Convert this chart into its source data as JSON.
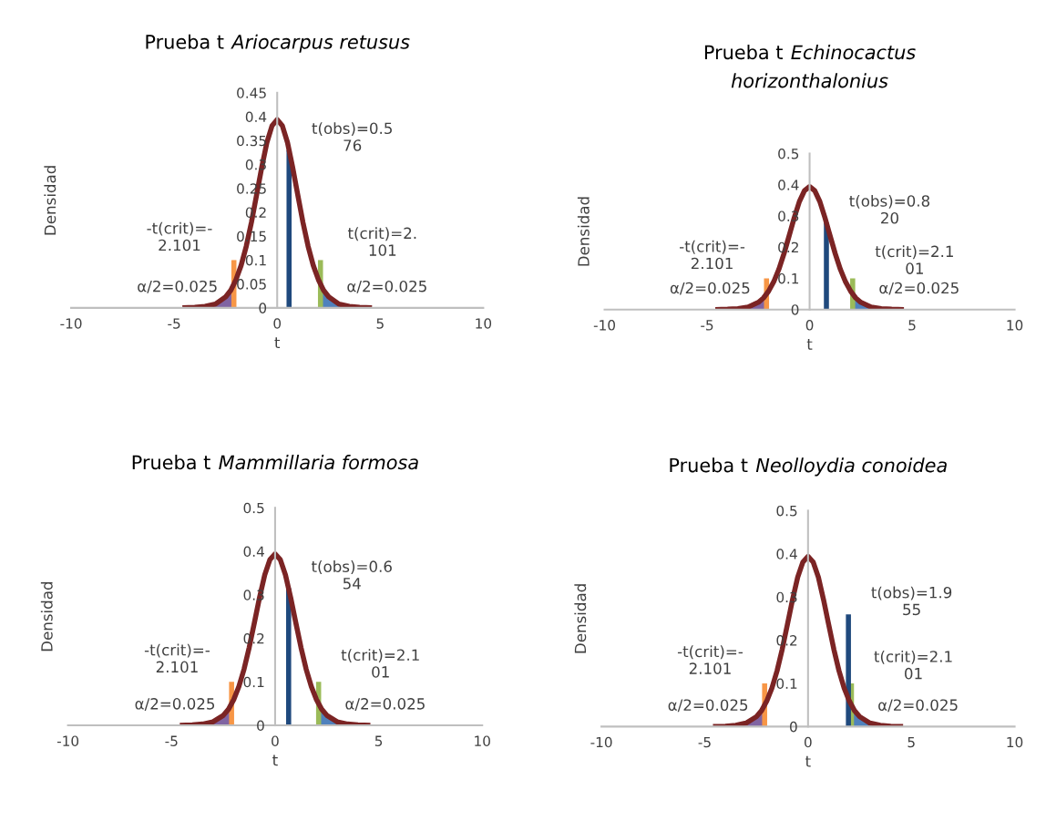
{
  "chart_data": [
    {
      "type": "line",
      "title": "Prueba t Ariocarpus retusus",
      "xlabel": "t",
      "ylabel": "Densidad",
      "xlim": [
        -10,
        10
      ],
      "xticks": [
        -10,
        -5,
        0,
        5,
        10
      ],
      "ylim": [
        0,
        0.45
      ],
      "yticks": [
        0,
        0.05,
        0.1,
        0.15,
        0.2,
        0.25,
        0.3,
        0.35,
        0.4,
        0.45
      ],
      "series": [
        {
          "type": "area",
          "color": "#8064a2",
          "x": [
            -4.6,
            -4,
            -3.5,
            -3,
            -2.5,
            -2.25,
            -2.101
          ],
          "values": [
            0.0,
            0.001,
            0.003,
            0.008,
            0.023,
            0.037,
            0.049
          ]
        },
        {
          "type": "area",
          "color": "#4f81bd",
          "x": [
            2.101,
            2.25,
            2.5,
            3,
            3.5,
            4,
            4.6
          ],
          "values": [
            0.049,
            0.037,
            0.023,
            0.008,
            0.003,
            0.001,
            0.0
          ]
        },
        {
          "type": "line",
          "color": "#f79646",
          "x": [
            -2.101,
            -2.101
          ],
          "values": [
            0,
            0.1
          ]
        },
        {
          "type": "line",
          "color": "#9bbb59",
          "x": [
            2.101,
            2.101
          ],
          "values": [
            0,
            0.1
          ]
        },
        {
          "type": "line",
          "color": "#1f497d",
          "x": [
            0.576,
            0.576
          ],
          "values": [
            0,
            0.33
          ]
        },
        {
          "type": "line",
          "color": "#7b2424",
          "x": [
            -4.6,
            -4,
            -3.5,
            -3,
            -2.5,
            -2.25,
            -2,
            -1.75,
            -1.5,
            -1.25,
            -1,
            -0.75,
            -0.5,
            -0.25,
            0,
            0.25,
            0.5,
            0.75,
            1,
            1.25,
            1.5,
            1.75,
            2,
            2.25,
            2.5,
            3,
            3.5,
            4,
            4.6
          ],
          "values": [
            0.0,
            0.001,
            0.003,
            0.008,
            0.023,
            0.037,
            0.059,
            0.089,
            0.129,
            0.179,
            0.236,
            0.294,
            0.346,
            0.381,
            0.394,
            0.381,
            0.346,
            0.294,
            0.236,
            0.179,
            0.129,
            0.089,
            0.059,
            0.037,
            0.023,
            0.008,
            0.003,
            0.001,
            0.0
          ]
        }
      ],
      "annotations": [
        {
          "text": "t(obs)=0.5\n76",
          "x": 0.576,
          "y": 0.33
        },
        {
          "text": "-t(crit)=-\n2.101",
          "x": -2.101,
          "y": 0.1
        },
        {
          "text": "t(crit)=2.\n101",
          "x": 2.101,
          "y": 0.1
        },
        {
          "text": "α/2=0.025",
          "x": -3,
          "y": 0
        },
        {
          "text": "α/2=0.025",
          "x": 3,
          "y": 0
        }
      ]
    },
    {
      "type": "line",
      "title": "Prueba t Echinocactus horizonthalonius",
      "xlabel": "t",
      "ylabel": "Densidad",
      "xlim": [
        -10,
        10
      ],
      "xticks": [
        -10,
        -5,
        0,
        5,
        10
      ],
      "ylim": [
        0,
        0.5
      ],
      "yticks": [
        0,
        0.1,
        0.2,
        0.3,
        0.4,
        0.5
      ],
      "series": [
        {
          "type": "area",
          "color": "#8064a2",
          "x": [
            -4.6,
            -4,
            -3.5,
            -3,
            -2.5,
            -2.25,
            -2.101
          ],
          "values": [
            0.0,
            0.001,
            0.003,
            0.008,
            0.023,
            0.037,
            0.049
          ]
        },
        {
          "type": "area",
          "color": "#4f81bd",
          "x": [
            2.101,
            2.25,
            2.5,
            3,
            3.5,
            4,
            4.6
          ],
          "values": [
            0.049,
            0.037,
            0.023,
            0.008,
            0.003,
            0.001,
            0.0
          ]
        },
        {
          "type": "line",
          "color": "#f79646",
          "x": [
            -2.101,
            -2.101
          ],
          "values": [
            0,
            0.1
          ]
        },
        {
          "type": "line",
          "color": "#9bbb59",
          "x": [
            2.101,
            2.101
          ],
          "values": [
            0,
            0.1
          ]
        },
        {
          "type": "line",
          "color": "#1f497d",
          "x": [
            0.82,
            0.82
          ],
          "values": [
            0,
            0.278
          ]
        },
        {
          "type": "line",
          "color": "#7b2424",
          "x": [
            -4.6,
            -4,
            -3.5,
            -3,
            -2.5,
            -2.25,
            -2,
            -1.75,
            -1.5,
            -1.25,
            -1,
            -0.75,
            -0.5,
            -0.25,
            0,
            0.25,
            0.5,
            0.75,
            1,
            1.25,
            1.5,
            1.75,
            2,
            2.25,
            2.5,
            3,
            3.5,
            4,
            4.6
          ],
          "values": [
            0.0,
            0.001,
            0.003,
            0.008,
            0.023,
            0.037,
            0.059,
            0.089,
            0.129,
            0.179,
            0.236,
            0.294,
            0.346,
            0.381,
            0.394,
            0.381,
            0.346,
            0.294,
            0.236,
            0.179,
            0.129,
            0.089,
            0.059,
            0.037,
            0.023,
            0.008,
            0.003,
            0.001,
            0.0
          ]
        }
      ],
      "annotations": [
        {
          "text": "t(obs)=0.8\n20",
          "x": 0.82,
          "y": 0.278
        },
        {
          "text": "-t(crit)=-\n2.101",
          "x": -2.101,
          "y": 0.1
        },
        {
          "text": "t(crit)=2.1\n01",
          "x": 2.101,
          "y": 0.1
        },
        {
          "text": "α/2=0.025",
          "x": -3,
          "y": 0
        },
        {
          "text": "α/2=0.025",
          "x": 3,
          "y": 0
        }
      ]
    },
    {
      "type": "line",
      "title": "Prueba t Mammillaria formosa",
      "xlabel": "t",
      "ylabel": "Densidad",
      "xlim": [
        -10,
        10
      ],
      "xticks": [
        -10,
        -5,
        0,
        5,
        10
      ],
      "ylim": [
        0,
        0.5
      ],
      "yticks": [
        0,
        0.1,
        0.2,
        0.3,
        0.4,
        0.5
      ],
      "series": [
        {
          "type": "area",
          "color": "#8064a2",
          "x": [
            -4.6,
            -4,
            -3.5,
            -3,
            -2.5,
            -2.25,
            -2.101
          ],
          "values": [
            0.0,
            0.001,
            0.003,
            0.008,
            0.023,
            0.037,
            0.049
          ]
        },
        {
          "type": "area",
          "color": "#4f81bd",
          "x": [
            2.101,
            2.25,
            2.5,
            3,
            3.5,
            4,
            4.6
          ],
          "values": [
            0.049,
            0.037,
            0.023,
            0.008,
            0.003,
            0.001,
            0.0
          ]
        },
        {
          "type": "line",
          "color": "#f79646",
          "x": [
            -2.101,
            -2.101
          ],
          "values": [
            0,
            0.1
          ]
        },
        {
          "type": "line",
          "color": "#9bbb59",
          "x": [
            2.101,
            2.101
          ],
          "values": [
            0,
            0.1
          ]
        },
        {
          "type": "line",
          "color": "#1f497d",
          "x": [
            0.654,
            0.654
          ],
          "values": [
            0,
            0.315
          ]
        },
        {
          "type": "line",
          "color": "#7b2424",
          "x": [
            -4.6,
            -4,
            -3.5,
            -3,
            -2.5,
            -2.25,
            -2,
            -1.75,
            -1.5,
            -1.25,
            -1,
            -0.75,
            -0.5,
            -0.25,
            0,
            0.25,
            0.5,
            0.75,
            1,
            1.25,
            1.5,
            1.75,
            2,
            2.25,
            2.5,
            3,
            3.5,
            4,
            4.6
          ],
          "values": [
            0.0,
            0.001,
            0.003,
            0.008,
            0.023,
            0.037,
            0.059,
            0.089,
            0.129,
            0.179,
            0.236,
            0.294,
            0.346,
            0.381,
            0.394,
            0.381,
            0.346,
            0.294,
            0.236,
            0.179,
            0.129,
            0.089,
            0.059,
            0.037,
            0.023,
            0.008,
            0.003,
            0.001,
            0.0
          ]
        }
      ],
      "annotations": [
        {
          "text": "t(obs)=0.6\n54",
          "x": 0.654,
          "y": 0.315
        },
        {
          "text": "-t(crit)=-\n2.101",
          "x": -2.101,
          "y": 0.1
        },
        {
          "text": "t(crit)=2.1\n01",
          "x": 2.101,
          "y": 0.1
        },
        {
          "text": "α/2=0.025",
          "x": -3,
          "y": 0
        },
        {
          "text": "α/2=0.025",
          "x": 3,
          "y": 0
        }
      ]
    },
    {
      "type": "line",
      "title": "Prueba t Neolloydia conoidea",
      "xlabel": "t",
      "ylabel": "Densidad",
      "xlim": [
        -10,
        10
      ],
      "xticks": [
        -10,
        -5,
        0,
        5,
        10
      ],
      "ylim": [
        0,
        0.5
      ],
      "yticks": [
        0,
        0.1,
        0.2,
        0.3,
        0.4,
        0.5
      ],
      "series": [
        {
          "type": "area",
          "color": "#8064a2",
          "x": [
            -4.6,
            -4,
            -3.5,
            -3,
            -2.5,
            -2.25,
            -2.101
          ],
          "values": [
            0.0,
            0.001,
            0.003,
            0.008,
            0.023,
            0.037,
            0.049
          ]
        },
        {
          "type": "area",
          "color": "#4f81bd",
          "x": [
            2.101,
            2.25,
            2.5,
            3,
            3.5,
            4,
            4.6
          ],
          "values": [
            0.049,
            0.037,
            0.023,
            0.008,
            0.003,
            0.001,
            0.0
          ]
        },
        {
          "type": "line",
          "color": "#f79646",
          "x": [
            -2.101,
            -2.101
          ],
          "values": [
            0,
            0.1
          ]
        },
        {
          "type": "line",
          "color": "#9bbb59",
          "x": [
            2.101,
            2.101
          ],
          "values": [
            0,
            0.1
          ]
        },
        {
          "type": "line",
          "color": "#1f497d",
          "x": [
            1.955,
            1.955
          ],
          "values": [
            0,
            0.26
          ]
        },
        {
          "type": "line",
          "color": "#7b2424",
          "x": [
            -4.6,
            -4,
            -3.5,
            -3,
            -2.5,
            -2.25,
            -2,
            -1.75,
            -1.5,
            -1.25,
            -1,
            -0.75,
            -0.5,
            -0.25,
            0,
            0.25,
            0.5,
            0.75,
            1,
            1.25,
            1.5,
            1.75,
            2,
            2.25,
            2.5,
            3,
            3.5,
            4,
            4.6
          ],
          "values": [
            0.0,
            0.001,
            0.003,
            0.008,
            0.023,
            0.037,
            0.059,
            0.089,
            0.129,
            0.179,
            0.236,
            0.294,
            0.346,
            0.381,
            0.394,
            0.381,
            0.346,
            0.294,
            0.236,
            0.179,
            0.129,
            0.089,
            0.059,
            0.037,
            0.023,
            0.008,
            0.003,
            0.001,
            0.0
          ]
        }
      ],
      "annotations": [
        {
          "text": "t(obs)=1.9\n55",
          "x": 1.955,
          "y": 0.26
        },
        {
          "text": "-t(crit)=-\n2.101",
          "x": -2.101,
          "y": 0.1
        },
        {
          "text": "t(crit)=2.1\n01",
          "x": 2.101,
          "y": 0.1
        },
        {
          "text": "α/2=0.025",
          "x": -3,
          "y": 0
        },
        {
          "text": "α/2=0.025",
          "x": 3,
          "y": 0
        }
      ]
    }
  ]
}
